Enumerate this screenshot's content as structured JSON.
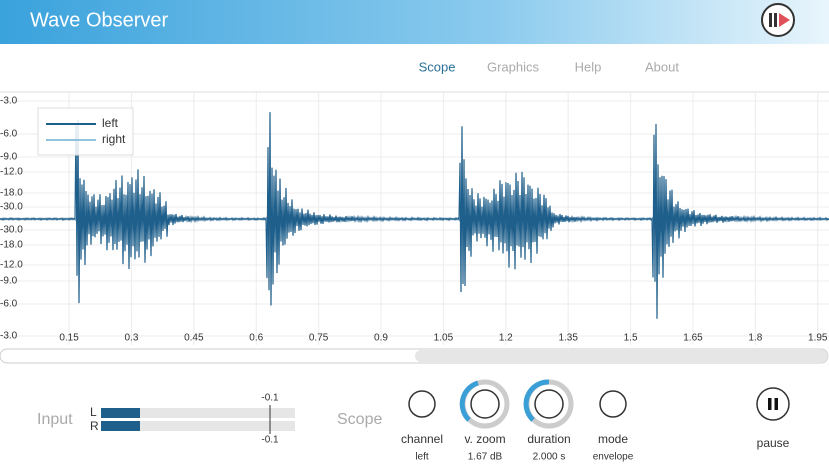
{
  "header": {
    "title": "Wave Observer"
  },
  "nav": [
    "Scope",
    "Graphics",
    "Help",
    "About"
  ],
  "scope": {
    "legend": [
      "left",
      "right"
    ],
    "yticks": [
      "-3.0",
      "-6.0",
      "-9.0",
      "-12.0",
      "-18.0",
      "-30.0",
      "-30.0",
      "-18.0",
      "-12.0",
      "-9.0",
      "-6.0",
      "-3.0"
    ],
    "xlim": [
      -0.016,
      1.977
    ],
    "xticks": [
      0.15,
      0.3,
      0.45,
      0.6,
      0.75,
      0.9,
      1.05,
      1.2,
      1.35,
      1.5,
      1.65,
      1.8,
      1.95
    ]
  },
  "input": {
    "label": "Input",
    "channels": [
      "L",
      "R"
    ],
    "peaks": [
      "-0.1",
      "-0.1"
    ]
  },
  "controls": {
    "label": "Scope",
    "knobs": [
      {
        "name": "channel",
        "value": "left"
      },
      {
        "name": "v. zoom",
        "value": "1.67 dB"
      },
      {
        "name": "duration",
        "value": "2.000 s"
      },
      {
        "name": "mode",
        "value": "envelope"
      }
    ],
    "pause": "pause"
  }
}
